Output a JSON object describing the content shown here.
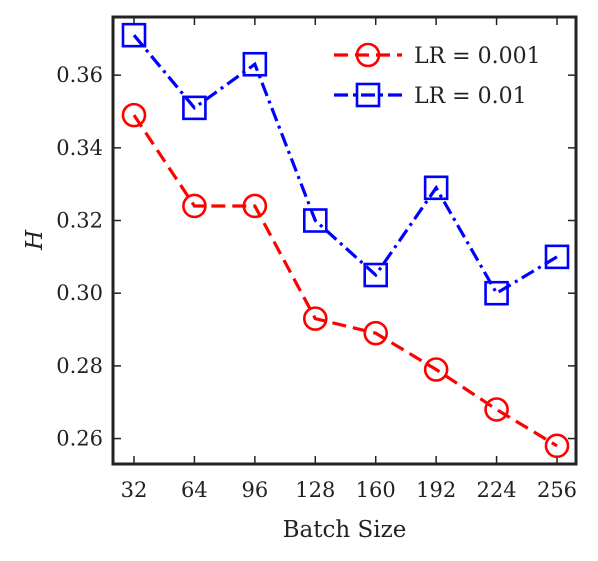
{
  "chart_data": {
    "type": "line",
    "categories": [
      "32",
      "64",
      "96",
      "128",
      "160",
      "192",
      "224",
      "256"
    ],
    "series": [
      {
        "name": "LR = 0.001",
        "values": [
          0.349,
          0.324,
          0.324,
          0.293,
          0.289,
          0.279,
          0.268,
          0.258
        ],
        "color": "#ff0000",
        "marker": "circle",
        "line_style": "dashed"
      },
      {
        "name": "LR = 0.01",
        "values": [
          0.371,
          0.351,
          0.363,
          0.32,
          0.305,
          0.329,
          0.3,
          0.31
        ],
        "color": "#0000ff",
        "marker": "square",
        "line_style": "dash-dot"
      }
    ],
    "xlabel": "Batch Size",
    "ylabel": "H",
    "ylim": [
      0.253,
      0.376
    ],
    "yticks": [
      "0.26",
      "0.28",
      "0.30",
      "0.32",
      "0.34",
      "0.36"
    ],
    "grid": false,
    "legend_position": "top-right"
  }
}
